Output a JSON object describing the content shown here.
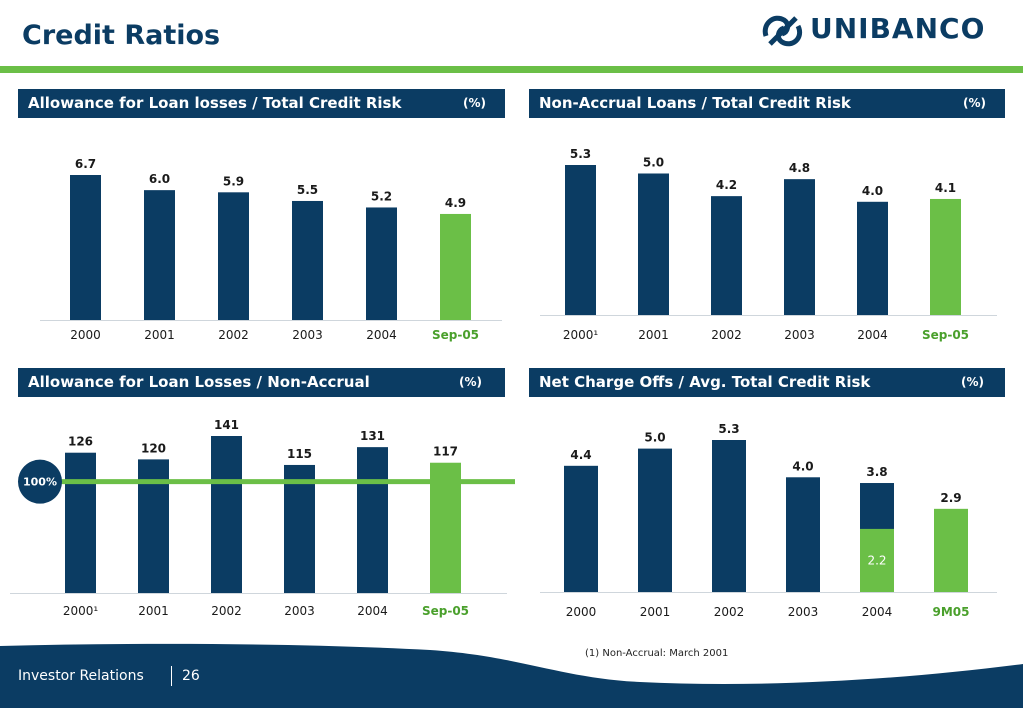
{
  "page": {
    "title": "Credit Ratios",
    "logo_text": "UNIBANCO",
    "footer_label": "Investor Relations",
    "footer_page": "26",
    "footnote": "(1) Non-Accrual: March 2001"
  },
  "colors": {
    "navy": "#0b3c63",
    "green": "#6bbf47",
    "text": "#1a1a1a"
  },
  "chart_data": [
    {
      "type": "bar",
      "title": "Allowance for Loan losses / Total Credit Risk",
      "unit": "(%)",
      "categories": [
        "2000",
        "2001",
        "2002",
        "2003",
        "2004",
        "Sep-05"
      ],
      "values": [
        6.7,
        6.0,
        5.9,
        5.5,
        5.2,
        4.9
      ],
      "value_labels": [
        "6.7",
        "6.0",
        "5.9",
        "5.5",
        "5.2",
        "4.9"
      ],
      "highlight": [
        false,
        false,
        false,
        false,
        false,
        true
      ],
      "ylim": [
        0,
        6.7
      ]
    },
    {
      "type": "bar",
      "title": "Non-Accrual Loans / Total Credit Risk",
      "unit": "(%)",
      "categories": [
        "2000¹",
        "2001",
        "2002",
        "2003",
        "2004",
        "Sep-05"
      ],
      "values": [
        5.3,
        5.0,
        4.2,
        4.8,
        4.0,
        4.1
      ],
      "value_labels": [
        "5.3",
        "5.0",
        "4.2",
        "4.8",
        "4.0",
        "4.1"
      ],
      "highlight": [
        false,
        false,
        false,
        false,
        false,
        true
      ],
      "ylim": [
        0,
        5.3
      ]
    },
    {
      "type": "bar",
      "title": "Allowance for Loan Losses / Non-Accrual",
      "unit": "(%)",
      "categories": [
        "2000¹",
        "2001",
        "2002",
        "2003",
        "2004",
        "Sep-05"
      ],
      "values": [
        126,
        120,
        141,
        115,
        131,
        117
      ],
      "value_labels": [
        "126",
        "120",
        "141",
        "115",
        "131",
        "117"
      ],
      "highlight": [
        false,
        false,
        false,
        false,
        false,
        true
      ],
      "ylim": [
        0,
        141
      ],
      "reference_line": {
        "value": 100,
        "label": "100%"
      }
    },
    {
      "type": "bar",
      "title": "Net Charge Offs / Avg. Total Credit Risk",
      "unit": "(%)",
      "categories": [
        "2000",
        "2001",
        "2002",
        "2003",
        "2004",
        "9M05"
      ],
      "values": [
        4.4,
        5.0,
        5.3,
        4.0,
        3.8,
        2.9
      ],
      "value_labels": [
        "4.4",
        "5.0",
        "5.3",
        "4.0",
        "3.8",
        "2.9"
      ],
      "highlight": [
        false,
        false,
        false,
        false,
        false,
        true
      ],
      "ylim": [
        0,
        5.3
      ],
      "inner_segment": {
        "index": 4,
        "value": 2.2,
        "label": "2.2"
      }
    }
  ]
}
